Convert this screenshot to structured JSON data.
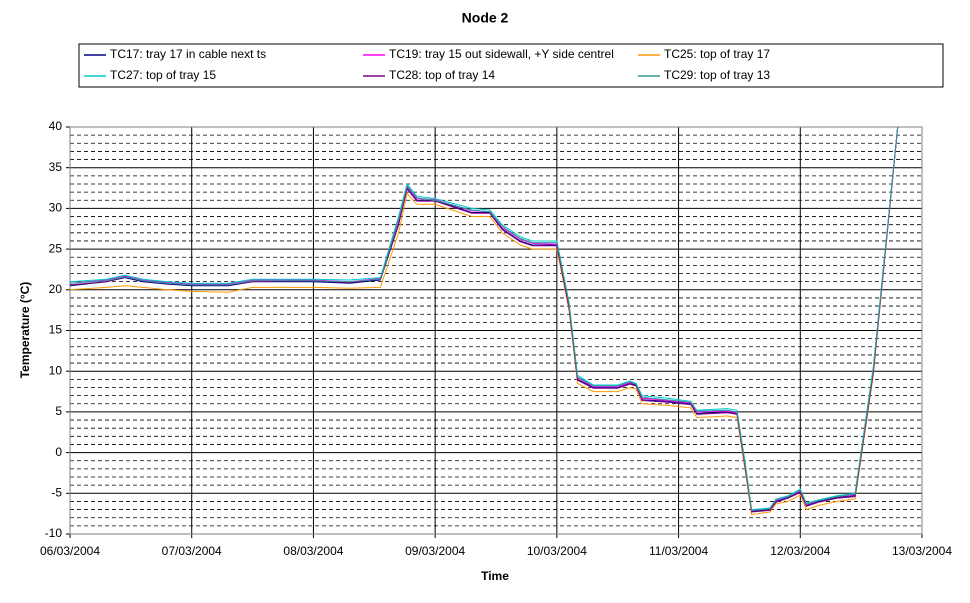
{
  "chart_data": {
    "type": "line",
    "title": "Node 2",
    "xlabel": "Time",
    "ylabel": "Temperature (°C)",
    "x": [
      0,
      0.3,
      0.45,
      0.6,
      0.8,
      1.0,
      1.3,
      1.5,
      1.8,
      2.0,
      2.3,
      2.55,
      2.7,
      2.77,
      2.85,
      3.0,
      3.1,
      3.3,
      3.45,
      3.55,
      3.7,
      3.8,
      4.0,
      4.1,
      4.17,
      4.3,
      4.5,
      4.6,
      4.65,
      4.7,
      4.9,
      5.1,
      5.15,
      5.4,
      5.48,
      5.55,
      5.6,
      5.75,
      5.8,
      5.9,
      6.0,
      6.05,
      6.15,
      6.3,
      6.45,
      6.6,
      6.8
    ],
    "xlim": [
      0,
      7
    ],
    "xticks": [
      {
        "value": 0,
        "label": "06/03/2004"
      },
      {
        "value": 1,
        "label": "07/03/2004"
      },
      {
        "value": 2,
        "label": "08/03/2004"
      },
      {
        "value": 3,
        "label": "09/03/2004"
      },
      {
        "value": 4,
        "label": "10/03/2004"
      },
      {
        "value": 5,
        "label": "11/03/2004"
      },
      {
        "value": 6,
        "label": "12/03/2004"
      },
      {
        "value": 7,
        "label": "13/03/2004"
      }
    ],
    "ylim": [
      -10,
      40
    ],
    "yticks": [
      -10,
      -5,
      0,
      5,
      10,
      15,
      20,
      25,
      30,
      35,
      40
    ],
    "yminorticks": [
      -9,
      -8,
      -7,
      -6,
      -4,
      -3,
      -2,
      -1,
      1,
      2,
      3,
      4,
      6,
      7,
      8,
      9,
      11,
      12,
      13,
      14,
      16,
      17,
      18,
      19,
      21,
      22,
      23,
      24,
      26,
      27,
      28,
      29,
      31,
      32,
      33,
      34,
      36,
      37,
      38,
      39
    ],
    "grid": true,
    "series": [
      {
        "name": "TC17: tray 17 in cable next ts",
        "color": "#000080",
        "values": [
          20.5,
          21,
          21.5,
          21,
          20.7,
          20.5,
          20.5,
          21,
          21,
          21,
          20.8,
          21.2,
          28,
          32.5,
          31,
          31,
          30.5,
          29.5,
          29.5,
          27.5,
          26,
          25.5,
          25.5,
          18,
          9,
          8,
          8,
          8.5,
          8.3,
          6.5,
          6.3,
          6,
          4.8,
          5,
          4.8,
          -2,
          -7.2,
          -7,
          -6,
          -5.5,
          -4.8,
          -6.5,
          -6,
          -5.5,
          -5.3,
          10,
          40
        ]
      },
      {
        "name": "TC19: tray 15 out sidewall, +Y side centrel",
        "color": "#ff00ff",
        "values": [
          20.8,
          21.2,
          21.7,
          21.2,
          20.9,
          20.7,
          20.7,
          21.2,
          21.2,
          21.2,
          21,
          21.4,
          28.3,
          32.7,
          31.2,
          31.1,
          30.6,
          29.7,
          29.6,
          27.7,
          26.2,
          25.7,
          25.6,
          18.2,
          9.2,
          8.1,
          8.1,
          8.6,
          8.4,
          6.7,
          6.4,
          6.1,
          5,
          5.1,
          4.9,
          -1.8,
          -7.1,
          -6.9,
          -5.9,
          -5.4,
          -4.7,
          -6.4,
          -5.9,
          -5.4,
          -5.2,
          10.2,
          40
        ]
      },
      {
        "name": "TC25: top of tray 17",
        "color": "#ff9900",
        "values": [
          20,
          20.3,
          20.5,
          20.3,
          20,
          19.8,
          19.7,
          20.3,
          20.3,
          20.3,
          20.2,
          20.3,
          27,
          31.8,
          30.5,
          30.5,
          30,
          29,
          29,
          27,
          25.5,
          25,
          25,
          17.5,
          8.5,
          7.5,
          7.5,
          8,
          7.8,
          6,
          5.8,
          5.5,
          4.3,
          4.5,
          4.3,
          -2.5,
          -7.6,
          -7.3,
          -6.3,
          -6,
          -5.2,
          -7,
          -6.5,
          -6,
          -5.7,
          9.5,
          40
        ]
      },
      {
        "name": "TC27: top of tray 15",
        "color": "#00cccc",
        "values": [
          21,
          21.3,
          21.8,
          21.3,
          21,
          20.8,
          20.8,
          21.3,
          21.3,
          21.3,
          21.2,
          21.5,
          29,
          33,
          31.5,
          31.2,
          30.8,
          30,
          29.8,
          28,
          26.5,
          26,
          26,
          18.5,
          9.5,
          8.3,
          8.3,
          8.8,
          8.5,
          7,
          6.7,
          6.3,
          5.2,
          5.4,
          5.2,
          -1.5,
          -7,
          -6.8,
          -5.7,
          -5.3,
          -4.5,
          -6.2,
          -5.8,
          -5.3,
          -5,
          10.5,
          40
        ]
      },
      {
        "name": "TC28: top of tray 14",
        "color": "#800080",
        "values": [
          20.6,
          21,
          21.6,
          21.1,
          20.8,
          20.6,
          20.6,
          21,
          21.1,
          21.1,
          20.9,
          21.3,
          28.1,
          32.4,
          30.9,
          30.9,
          30.4,
          29.4,
          29.4,
          27.4,
          25.9,
          25.4,
          25.4,
          17.8,
          8.9,
          7.9,
          7.9,
          8.4,
          8.2,
          6.4,
          6.2,
          5.9,
          4.7,
          4.9,
          4.7,
          -2.1,
          -7.3,
          -7.1,
          -6.1,
          -5.6,
          -4.9,
          -6.6,
          -6.1,
          -5.6,
          -5.4,
          9.8,
          40
        ]
      },
      {
        "name": "TC29: top of tray 13",
        "color": "#339999",
        "values": [
          20.8,
          21.1,
          21.6,
          21.1,
          20.8,
          20.6,
          20.6,
          21.1,
          21.1,
          21.1,
          21,
          21.3,
          28.7,
          32.8,
          31.3,
          31,
          30.6,
          29.8,
          29.6,
          27.8,
          26.3,
          25.8,
          25.8,
          18.3,
          9.3,
          8.2,
          8.2,
          8.7,
          8.4,
          6.8,
          6.5,
          6.2,
          5.1,
          5.2,
          5,
          -1.7,
          -7.1,
          -6.9,
          -5.8,
          -5.4,
          -4.6,
          -6.3,
          -5.9,
          -5.4,
          -5.1,
          10.3,
          40
        ]
      }
    ]
  }
}
